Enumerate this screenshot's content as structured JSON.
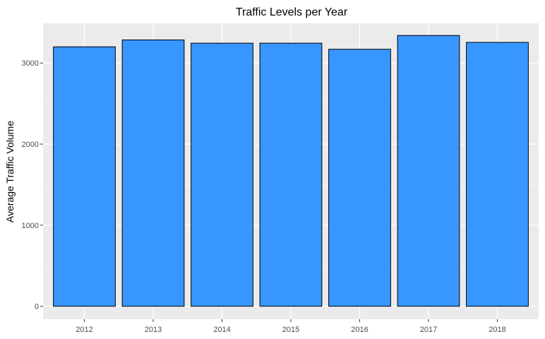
{
  "chart_data": {
    "type": "bar",
    "title": "Traffic Levels per Year",
    "xlabel": "",
    "ylabel": "Average Traffic Volume",
    "categories": [
      "2012",
      "2013",
      "2014",
      "2015",
      "2016",
      "2017",
      "2018"
    ],
    "values": [
      3200,
      3285,
      3245,
      3245,
      3170,
      3340,
      3255
    ],
    "ylim": [
      -160,
      3490
    ],
    "yticks": [
      0,
      1000,
      2000,
      3000
    ],
    "ytick_labels": [
      "0",
      "1000",
      "2000",
      "3000"
    ],
    "grid": true,
    "legend": "none",
    "colors": {
      "bar_fill": "#3796FF",
      "bar_stroke": "#000000",
      "panel_background": "#EBEBEB",
      "grid_major": "#FFFFFF",
      "grid_minor": "#F5F5F5",
      "tick_text": "#4D4D4D"
    }
  }
}
